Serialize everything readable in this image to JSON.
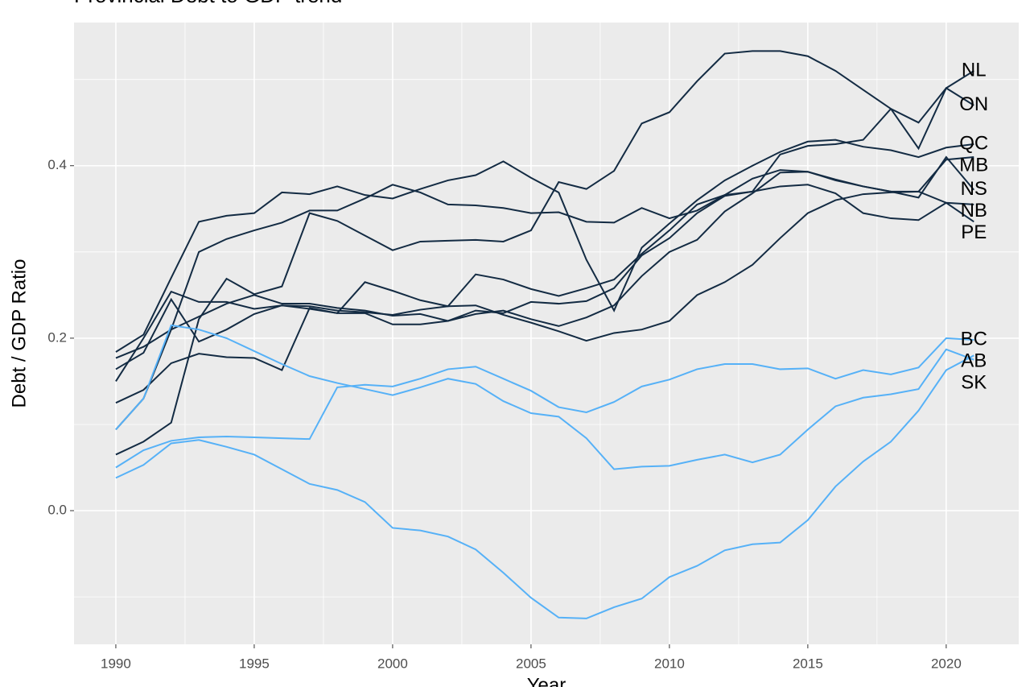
{
  "chart_data": {
    "type": "line",
    "title": "Provincial Debt to GDP trend",
    "x_label": "Year",
    "y_label": "Debt / GDP Ratio",
    "x": [
      1990,
      1991,
      1992,
      1993,
      1994,
      1995,
      1996,
      1997,
      1998,
      1999,
      2000,
      2001,
      2002,
      2003,
      2004,
      2005,
      2006,
      2007,
      2008,
      2009,
      2010,
      2011,
      2012,
      2013,
      2014,
      2015,
      2016,
      2017,
      2018,
      2019,
      2020,
      2021
    ],
    "series": [
      {
        "name": "NL",
        "color": "#132B43",
        "values": [
          0.065,
          0.08,
          0.102,
          0.222,
          0.269,
          0.251,
          0.26,
          0.345,
          0.336,
          0.319,
          0.302,
          0.312,
          0.313,
          0.314,
          0.312,
          0.325,
          0.381,
          0.373,
          0.394,
          0.449,
          0.462,
          0.498,
          0.53,
          0.533,
          0.533,
          0.527,
          0.51,
          0.488,
          0.466,
          0.42,
          0.49,
          0.51
        ]
      },
      {
        "name": "ON",
        "color": "#132B43",
        "values": [
          0.125,
          0.14,
          0.171,
          0.182,
          0.178,
          0.177,
          0.163,
          0.235,
          0.229,
          0.229,
          0.216,
          0.216,
          0.22,
          0.232,
          0.229,
          0.242,
          0.24,
          0.243,
          0.258,
          0.296,
          0.316,
          0.345,
          0.365,
          0.37,
          0.413,
          0.423,
          0.425,
          0.43,
          0.466,
          0.45,
          0.49,
          0.47
        ]
      },
      {
        "name": "QC",
        "color": "#132B43",
        "values": [
          0.184,
          0.204,
          0.27,
          0.335,
          0.342,
          0.345,
          0.369,
          0.367,
          0.376,
          0.366,
          0.362,
          0.373,
          0.383,
          0.389,
          0.405,
          0.386,
          0.369,
          0.291,
          0.232,
          0.305,
          0.333,
          0.36,
          0.383,
          0.4,
          0.416,
          0.428,
          0.43,
          0.422,
          0.418,
          0.41,
          0.421,
          0.425
        ]
      },
      {
        "name": "MB",
        "color": "#132B43",
        "values": [
          0.15,
          0.2,
          0.254,
          0.242,
          0.242,
          0.234,
          0.238,
          0.237,
          0.232,
          0.23,
          0.227,
          0.233,
          0.237,
          0.238,
          0.227,
          0.218,
          0.208,
          0.197,
          0.206,
          0.21,
          0.22,
          0.25,
          0.265,
          0.285,
          0.316,
          0.345,
          0.36,
          0.367,
          0.369,
          0.37,
          0.407,
          0.41
        ]
      },
      {
        "name": "NS",
        "color": "#132B43",
        "values": [
          0.094,
          0.13,
          0.21,
          0.225,
          0.24,
          0.25,
          0.24,
          0.24,
          0.235,
          0.232,
          0.226,
          0.228,
          0.22,
          0.228,
          0.232,
          0.222,
          0.214,
          0.224,
          0.238,
          0.272,
          0.3,
          0.314,
          0.347,
          0.368,
          0.392,
          0.393,
          0.384,
          0.376,
          0.37,
          0.363,
          0.41,
          0.372
        ]
      },
      {
        "name": "NB",
        "color": "#132B43",
        "values": [
          0.177,
          0.19,
          0.21,
          0.3,
          0.315,
          0.325,
          0.334,
          0.348,
          0.348,
          0.362,
          0.378,
          0.369,
          0.355,
          0.354,
          0.351,
          0.345,
          0.346,
          0.335,
          0.334,
          0.351,
          0.339,
          0.348,
          0.366,
          0.385,
          0.395,
          0.393,
          0.383,
          0.376,
          0.37,
          0.37,
          0.357,
          0.355
        ]
      },
      {
        "name": "PE",
        "color": "#132B43",
        "values": [
          0.164,
          0.183,
          0.245,
          0.196,
          0.21,
          0.228,
          0.238,
          0.234,
          0.229,
          0.265,
          0.255,
          0.244,
          0.237,
          0.274,
          0.268,
          0.257,
          0.249,
          0.258,
          0.268,
          0.298,
          0.325,
          0.355,
          0.366,
          0.37,
          0.376,
          0.378,
          0.368,
          0.345,
          0.339,
          0.337,
          0.357,
          0.335
        ]
      },
      {
        "name": "BC",
        "color": "#56B1F7",
        "values": [
          0.05,
          0.07,
          0.081,
          0.085,
          0.086,
          0.085,
          0.084,
          0.083,
          0.143,
          0.146,
          0.144,
          0.153,
          0.164,
          0.167,
          0.153,
          0.139,
          0.12,
          0.114,
          0.126,
          0.144,
          0.152,
          0.164,
          0.17,
          0.17,
          0.164,
          0.165,
          0.153,
          0.163,
          0.158,
          0.166,
          0.2,
          0.198
        ]
      },
      {
        "name": "SK",
        "color": "#56B1F7",
        "values": [
          0.094,
          0.13,
          0.215,
          0.21,
          0.2,
          0.185,
          0.17,
          0.156,
          0.148,
          0.141,
          0.134,
          0.143,
          0.153,
          0.147,
          0.127,
          0.113,
          0.109,
          0.084,
          0.048,
          0.051,
          0.052,
          0.059,
          0.065,
          0.056,
          0.065,
          0.094,
          0.121,
          0.131,
          0.135,
          0.141,
          0.187,
          0.175
        ]
      },
      {
        "name": "AB",
        "color": "#56B1F7",
        "values": [
          0.038,
          0.053,
          0.078,
          0.082,
          0.074,
          0.065,
          0.048,
          0.031,
          0.024,
          0.01,
          -0.02,
          -0.023,
          -0.03,
          -0.045,
          -0.072,
          -0.101,
          -0.124,
          -0.125,
          -0.112,
          -0.102,
          -0.077,
          -0.064,
          -0.046,
          -0.039,
          -0.037,
          -0.011,
          0.028,
          0.057,
          0.08,
          0.116,
          0.163,
          0.18
        ]
      }
    ],
    "xlim": [
      1988.49,
      2022.62
    ],
    "ylim": [
      -0.155,
      0.566
    ],
    "xticks": [
      1990,
      1995,
      2000,
      2005,
      2010,
      2015,
      2020
    ],
    "yticks": [
      {
        "value": 0,
        "label": "0.0"
      },
      0.2,
      0.4
    ],
    "x_minor_grid": [
      1992.5,
      1997.5,
      2002.5,
      2007.5,
      2012.5,
      2017.5
    ],
    "y_minor_grid": [
      -0.1,
      0.1,
      0.3,
      0.5
    ],
    "grid": true,
    "panel_color": "#EBEBEB"
  }
}
